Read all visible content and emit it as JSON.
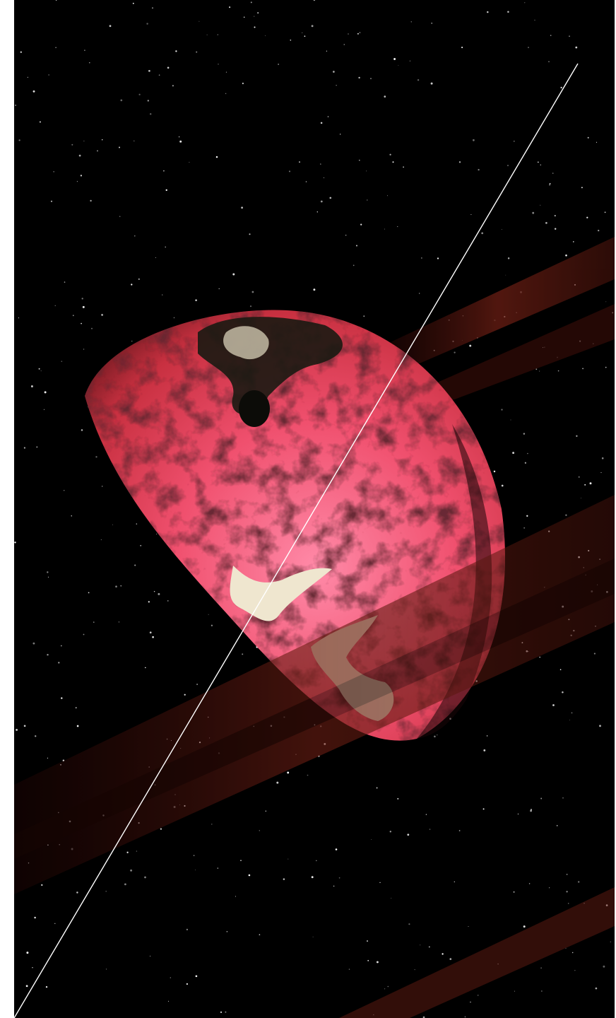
{
  "scene": {
    "subject": "ringed-planet",
    "colors": {
      "space": "#000000",
      "planet_light": "#ff7a9a",
      "planet_mid": "#e8455f",
      "planet_dark": "#2a0a0c",
      "ice": "#efe6cf",
      "ring": "#5a1a12",
      "stars": "#ffffff",
      "guide_line": "#ffffff"
    }
  }
}
